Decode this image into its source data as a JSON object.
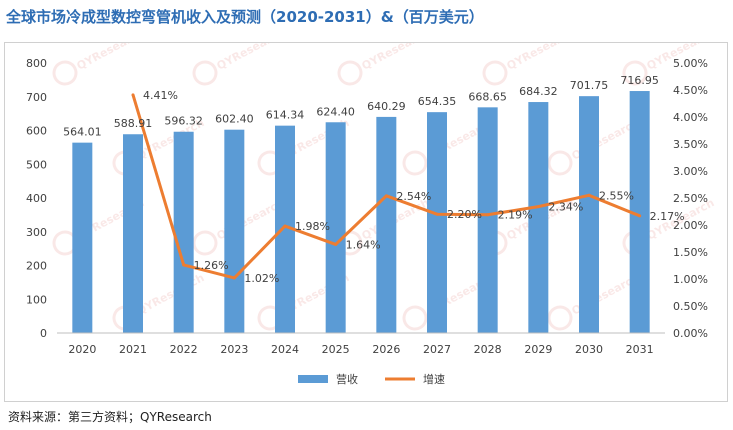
{
  "page": {
    "title": "全球市场冷成型数控弯管机收入及预测（2020-2031）&（百万美元）",
    "source": "资料来源：第三方资料；QYResearch",
    "watermark": "QYResearch"
  },
  "chart_data": {
    "type": "bar",
    "title": "全球市场冷成型数控弯管机收入及预测（2020-2031）&（百万美元）",
    "categories": [
      "2020",
      "2021",
      "2022",
      "2023",
      "2024",
      "2025",
      "2026",
      "2027",
      "2028",
      "2029",
      "2030",
      "2031"
    ],
    "series": [
      {
        "name": "营收",
        "type": "bar",
        "axis": "left",
        "values": [
          564.01,
          588.91,
          596.32,
          602.4,
          614.34,
          624.4,
          640.29,
          654.35,
          668.65,
          684.32,
          701.75,
          716.95
        ],
        "labels": [
          "564.01",
          "588.91",
          "596.32",
          "602.40",
          "614.34",
          "624.40",
          "640.29",
          "654.35",
          "668.65",
          "684.32",
          "701.75",
          "716.95"
        ],
        "color": "#5b9bd5"
      },
      {
        "name": "增速",
        "type": "line",
        "axis": "right",
        "values": [
          null,
          4.41,
          1.26,
          1.02,
          1.98,
          1.64,
          2.54,
          2.2,
          2.19,
          2.34,
          2.55,
          2.17
        ],
        "labels": [
          "",
          "4.41%",
          "1.26%",
          "1.02%",
          "1.98%",
          "1.64%",
          "2.54%",
          "2.20%",
          "2.19%",
          "2.34%",
          "2.55%",
          "2.17%"
        ],
        "color": "#ed7d31"
      }
    ],
    "y_left": {
      "min": 0,
      "max": 800,
      "step": 100,
      "ticks": [
        "0",
        "100",
        "200",
        "300",
        "400",
        "500",
        "600",
        "700",
        "800"
      ]
    },
    "y_right": {
      "min": 0,
      "max": 5,
      "step": 0.5,
      "ticks": [
        "0.00%",
        "0.50%",
        "1.00%",
        "1.50%",
        "2.00%",
        "2.50%",
        "3.00%",
        "3.50%",
        "4.00%",
        "4.50%",
        "5.00%"
      ]
    },
    "legend": [
      "营收",
      "增速"
    ],
    "legend_position": "bottom",
    "grid": false
  }
}
